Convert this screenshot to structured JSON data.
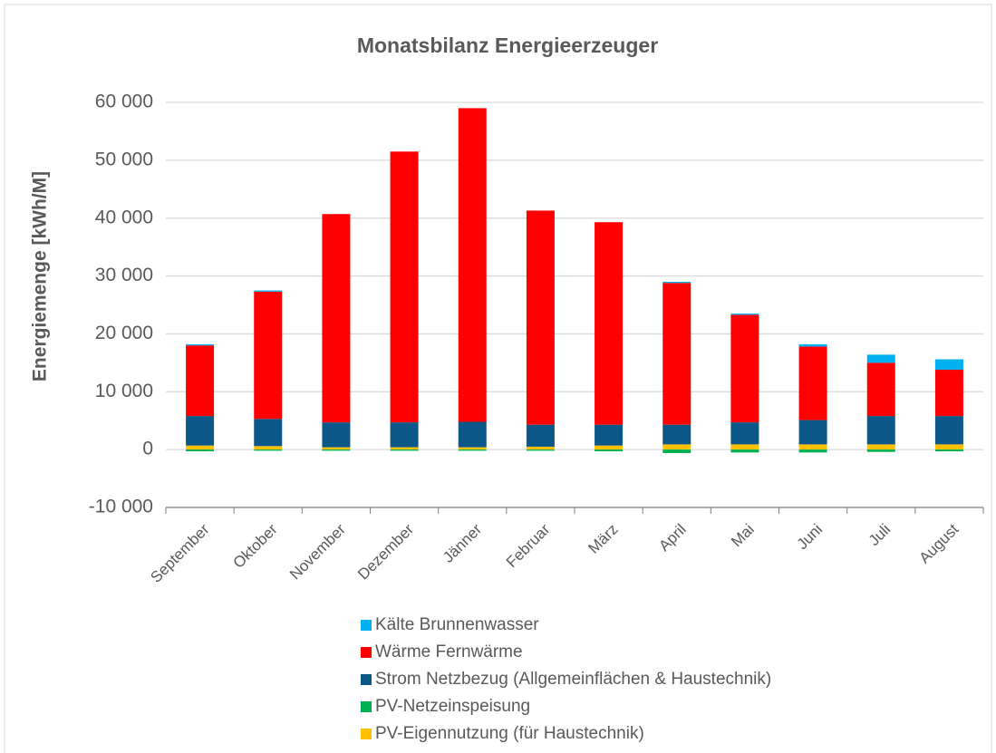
{
  "chart_data": {
    "type": "stacked_bar",
    "title": "Monatsbilanz Energieerzeuger",
    "y_label": "Energiemenge  [kWh/M]",
    "categories": [
      "September",
      "Oktober",
      "November",
      "Dezember",
      "Jänner",
      "Februar",
      "März",
      "April",
      "Mai",
      "Juni",
      "Juli",
      "August"
    ],
    "series": [
      {
        "name": "PV-Eigennutzung (für Haustechnik)",
        "color": "#ffc000",
        "values": [
          700,
          600,
          400,
          400,
          400,
          500,
          700,
          900,
          900,
          900,
          900,
          900
        ]
      },
      {
        "name": "PV-Netzeinspeisung",
        "color": "#00b050",
        "values": [
          -300,
          -200,
          -200,
          -200,
          -200,
          -200,
          -300,
          -600,
          -500,
          -500,
          -400,
          -300
        ]
      },
      {
        "name": "Strom Netzbezug (Allgemeinflächen & Haustechnik)",
        "color": "#0b5787",
        "values": [
          5100,
          4700,
          4300,
          4300,
          4400,
          3800,
          3600,
          3400,
          3800,
          4200,
          4900,
          4900
        ]
      },
      {
        "name": "Wärme Fernwärme",
        "color": "#ff0000",
        "values": [
          12200,
          22000,
          36000,
          46800,
          54200,
          37000,
          35000,
          24500,
          18600,
          12700,
          9200,
          8000
        ]
      },
      {
        "name": "Kälte Brunnenwasser",
        "color": "#00b0f0",
        "values": [
          200,
          200,
          0,
          0,
          0,
          0,
          0,
          200,
          200,
          400,
          1400,
          1800
        ]
      }
    ],
    "ylim": [
      -10000,
      60000
    ],
    "yticks": [
      {
        "value": -10000,
        "label": "-10 000"
      },
      0,
      {
        "value": 10000,
        "label": "10 000"
      },
      {
        "value": 20000,
        "label": "20 000"
      },
      {
        "value": 30000,
        "label": "30 000"
      },
      {
        "value": 40000,
        "label": "40 000"
      },
      {
        "value": 50000,
        "label": "50 000"
      },
      {
        "value": 60000,
        "label": "60 000"
      }
    ],
    "grid": true
  }
}
